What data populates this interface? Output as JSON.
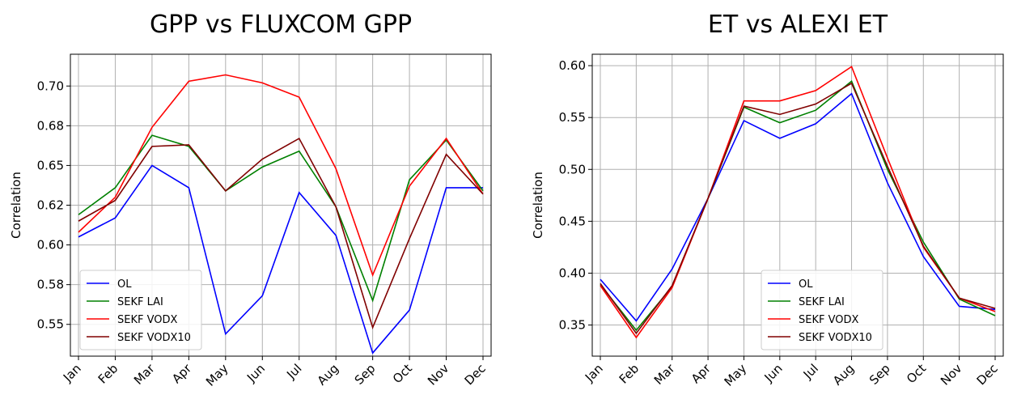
{
  "chart_data": [
    {
      "type": "line",
      "title": "GPP vs FLUXCOM GPP",
      "y_label": "Correlation",
      "categories": [
        "Jan",
        "Feb",
        "Mar",
        "Apr",
        "May",
        "Jun",
        "Jul",
        "Aug",
        "Sep",
        "Oct",
        "Nov",
        "Dec"
      ],
      "ylim": [
        0.53,
        0.72
      ],
      "yticks": [
        {
          "value": 0.55,
          "label": "0.55"
        },
        {
          "value": 0.575,
          "label": "0.58"
        },
        {
          "value": 0.6,
          "label": "0.60"
        },
        {
          "value": 0.625,
          "label": "0.62"
        },
        {
          "value": 0.65,
          "label": "0.65"
        },
        {
          "value": 0.675,
          "label": "0.68"
        },
        {
          "value": 0.7,
          "label": "0.70"
        }
      ],
      "grid": true,
      "legend": "lower left",
      "series": [
        {
          "name": "OL",
          "color": "#0000ff",
          "values": [
            0.605,
            0.617,
            0.65,
            0.636,
            0.544,
            0.568,
            0.633,
            0.606,
            0.532,
            0.559,
            0.636,
            0.636
          ]
        },
        {
          "name": "SEKF LAI",
          "color": "#008000",
          "values": [
            0.619,
            0.636,
            0.669,
            0.662,
            0.634,
            0.649,
            0.659,
            0.624,
            0.565,
            0.641,
            0.666,
            0.634
          ]
        },
        {
          "name": "SEKF VODX",
          "color": "#ff0000",
          "values": [
            0.608,
            0.63,
            0.674,
            0.703,
            0.707,
            0.702,
            0.693,
            0.648,
            0.581,
            0.637,
            0.667,
            0.632
          ]
        },
        {
          "name": "SEKF VODX10",
          "color": "#800000",
          "values": [
            0.615,
            0.628,
            0.662,
            0.663,
            0.634,
            0.654,
            0.667,
            0.624,
            0.548,
            0.604,
            0.657,
            0.632
          ]
        }
      ]
    },
    {
      "type": "line",
      "title": "ET vs ALEXI ET",
      "y_label": "Correlation",
      "categories": [
        "Jan",
        "Feb",
        "Mar",
        "Apr",
        "May",
        "Jun",
        "Jul",
        "Aug",
        "Sep",
        "Oct",
        "Nov",
        "Dec"
      ],
      "ylim": [
        0.32,
        0.611
      ],
      "yticks": [
        {
          "value": 0.35,
          "label": "0.35"
        },
        {
          "value": 0.4,
          "label": "0.40"
        },
        {
          "value": 0.45,
          "label": "0.45"
        },
        {
          "value": 0.5,
          "label": "0.50"
        },
        {
          "value": 0.55,
          "label": "0.55"
        },
        {
          "value": 0.6,
          "label": "0.60"
        }
      ],
      "grid": true,
      "legend": "lower center",
      "series": [
        {
          "name": "OL",
          "color": "#0000ff",
          "values": [
            0.394,
            0.354,
            0.404,
            0.472,
            0.547,
            0.53,
            0.544,
            0.573,
            0.487,
            0.416,
            0.368,
            0.365
          ]
        },
        {
          "name": "SEKF LAI",
          "color": "#008000",
          "values": [
            0.389,
            0.345,
            0.387,
            0.472,
            0.56,
            0.545,
            0.557,
            0.585,
            0.5,
            0.43,
            0.375,
            0.359
          ]
        },
        {
          "name": "SEKF VODX",
          "color": "#ff0000",
          "values": [
            0.388,
            0.338,
            0.386,
            0.472,
            0.566,
            0.566,
            0.576,
            0.599,
            0.511,
            0.425,
            0.376,
            0.363
          ]
        },
        {
          "name": "SEKF VODX10",
          "color": "#800000",
          "values": [
            0.39,
            0.342,
            0.388,
            0.472,
            0.561,
            0.553,
            0.563,
            0.583,
            0.503,
            0.426,
            0.376,
            0.366
          ]
        }
      ]
    }
  ]
}
